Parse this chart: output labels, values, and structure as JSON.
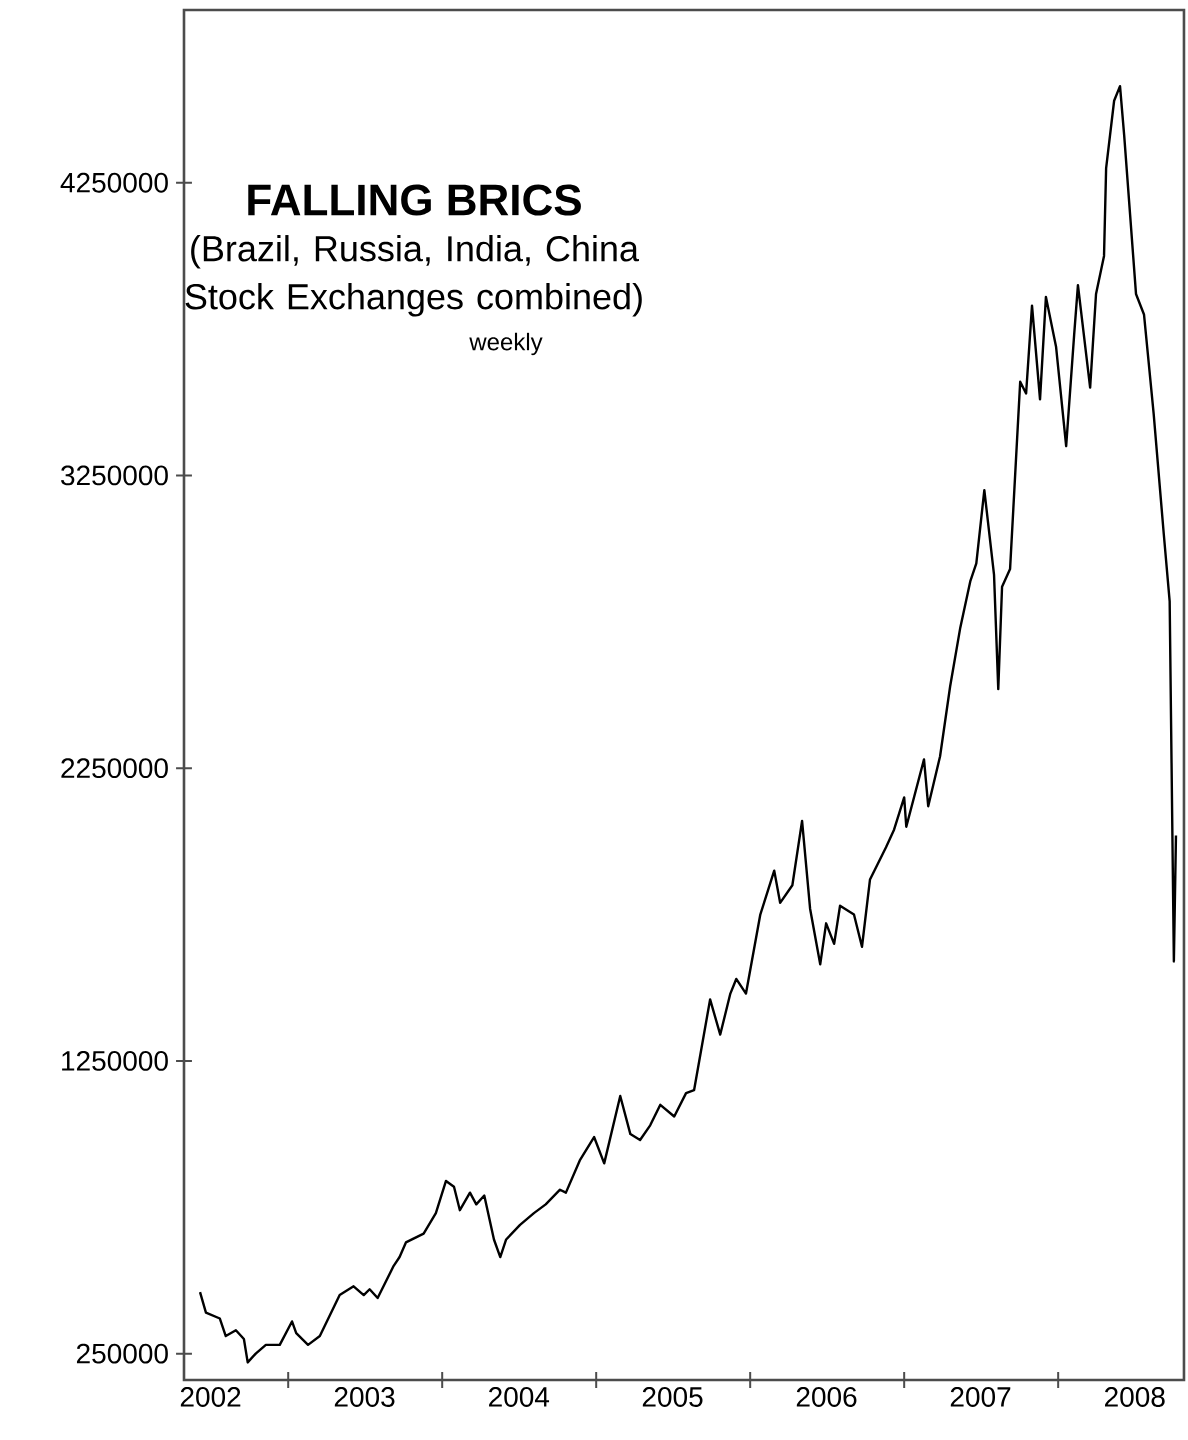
{
  "chart_data": {
    "type": "line",
    "title": "FALLING BRICS",
    "subtitle": "(Brazil, Russia, India, China Stock Exchanges combined)",
    "annotations": [
      "weekly"
    ],
    "color": "#000000",
    "x": [
      "2002-06-06",
      "2002-06-20",
      "2002-07-23",
      "2002-08-06",
      "2002-08-30",
      "2002-09-18",
      "2002-09-27",
      "2002-10-16",
      "2002-11-09",
      "2002-12-12",
      "2003-01-10",
      "2003-01-20",
      "2003-02-17",
      "2003-03-17",
      "2003-05-03",
      "2003-06-05",
      "2003-06-29",
      "2003-07-13",
      "2003-08-01",
      "2003-09-08",
      "2003-09-22",
      "2003-10-07",
      "2003-11-18",
      "2003-12-17",
      "2004-01-10",
      "2004-01-29",
      "2004-02-12",
      "2004-03-07",
      "2004-03-22",
      "2004-04-10",
      "2004-05-03",
      "2004-05-18",
      "2004-06-01",
      "2004-07-04",
      "2004-08-06",
      "2004-09-03",
      "2004-10-07",
      "2004-10-21",
      "2004-11-23",
      "2004-12-27",
      "2005-01-20",
      "2005-02-27",
      "2005-03-23",
      "2005-04-15",
      "2005-05-09",
      "2005-06-02",
      "2005-07-05",
      "2005-08-02",
      "2005-08-21",
      "2005-09-28",
      "2005-10-22",
      "2005-11-15",
      "2005-11-29",
      "2005-12-22",
      "2006-01-25",
      "2006-02-27",
      "2006-03-13",
      "2006-04-11",
      "2006-05-04",
      "2006-05-23",
      "2006-06-16",
      "2006-06-30",
      "2006-07-19",
      "2006-08-02",
      "2006-09-04",
      "2006-09-23",
      "2006-10-12",
      "2006-11-19",
      "2006-12-08",
      "2007-01-01",
      "2007-01-06",
      "2007-02-17",
      "2007-02-27",
      "2007-03-27",
      "2007-04-20",
      "2007-05-14",
      "2007-06-07",
      "2007-06-21",
      "2007-07-10",
      "2007-08-02",
      "2007-08-12",
      "2007-08-21",
      "2007-09-09",
      "2007-10-03",
      "2007-10-17",
      "2007-10-31",
      "2007-11-19",
      "2007-12-03",
      "2007-12-27",
      "2008-01-20",
      "2008-02-08",
      "2008-02-17",
      "2008-03-17",
      "2008-03-31",
      "2008-04-19",
      "2008-04-24",
      "2008-05-13",
      "2008-05-27",
      "2008-06-06",
      "2008-06-20",
      "2008-07-04",
      "2008-07-23",
      "2008-08-15",
      "2008-09-08",
      "2008-09-22",
      "2008-10-02",
      "2008-10-07"
    ],
    "values": [
      460000,
      390000,
      370000,
      310000,
      330000,
      300000,
      220000,
      250000,
      280000,
      280000,
      360000,
      320000,
      280000,
      310000,
      450000,
      480000,
      450000,
      470000,
      440000,
      550000,
      580000,
      630000,
      660000,
      730000,
      840000,
      820000,
      740000,
      800000,
      760000,
      790000,
      640000,
      580000,
      640000,
      690000,
      730000,
      760000,
      810000,
      800000,
      910000,
      990000,
      900000,
      1130000,
      1000000,
      980000,
      1030000,
      1100000,
      1060000,
      1140000,
      1150000,
      1460000,
      1340000,
      1480000,
      1530000,
      1480000,
      1750000,
      1900000,
      1790000,
      1850000,
      2070000,
      1770000,
      1580000,
      1720000,
      1650000,
      1780000,
      1750000,
      1640000,
      1870000,
      1980000,
      2040000,
      2150000,
      2050000,
      2280000,
      2120000,
      2290000,
      2530000,
      2730000,
      2890000,
      2950000,
      3200000,
      2910000,
      2520000,
      2870000,
      2930000,
      3570000,
      3530000,
      3830000,
      3510000,
      3860000,
      3690000,
      3350000,
      3730000,
      3900000,
      3550000,
      3870000,
      4000000,
      4300000,
      4530000,
      4580000,
      4410000,
      4140000,
      3870000,
      3800000,
      3460000,
      3050000,
      2820000,
      1590000,
      2020000
    ],
    "xlim": [
      "2002-04-29",
      "2008-10-26"
    ],
    "xticks": [
      {
        "value": "2002-07-01",
        "label": "2002"
      },
      {
        "value": "2003-01-01",
        "label": null
      },
      {
        "value": "2003-07-01",
        "label": "2003"
      },
      {
        "value": "2004-01-01",
        "label": null
      },
      {
        "value": "2004-07-01",
        "label": "2004"
      },
      {
        "value": "2005-01-01",
        "label": null
      },
      {
        "value": "2005-07-01",
        "label": "2005"
      },
      {
        "value": "2006-01-01",
        "label": null
      },
      {
        "value": "2006-07-01",
        "label": "2006"
      },
      {
        "value": "2007-01-01",
        "label": null
      },
      {
        "value": "2007-07-01",
        "label": "2007"
      },
      {
        "value": "2008-01-01",
        "label": null
      },
      {
        "value": "2008-07-01",
        "label": "2008"
      }
    ],
    "ylim": [
      160000,
      4840000
    ],
    "yticks": [
      250000,
      1250000,
      2250000,
      3250000,
      4250000
    ]
  }
}
